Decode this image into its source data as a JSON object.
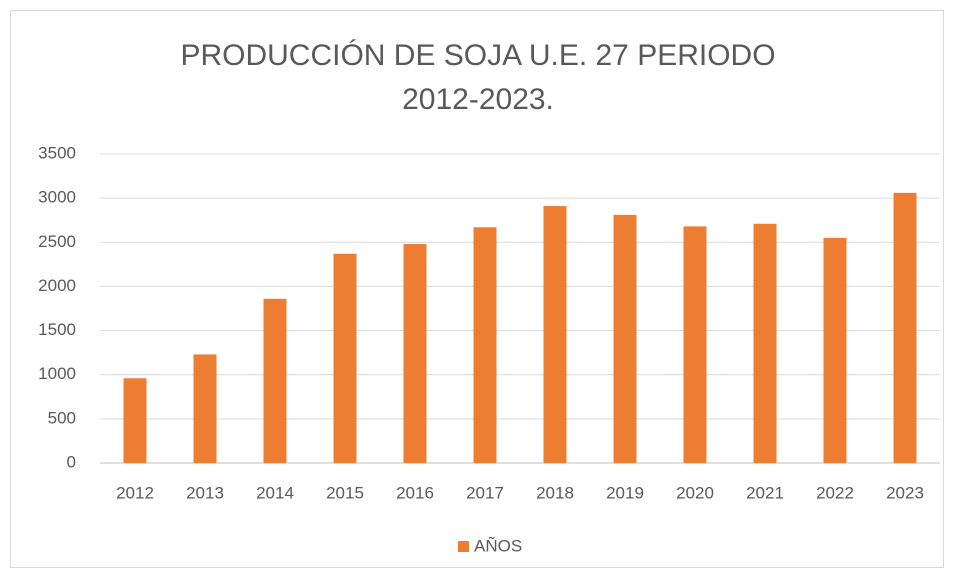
{
  "chart_data": {
    "type": "bar",
    "title": "PRODUCCIÓN DE SOJA U.E. 27 PERIODO 2012-2023.",
    "categories": [
      "2012",
      "2013",
      "2014",
      "2015",
      "2016",
      "2017",
      "2018",
      "2019",
      "2020",
      "2021",
      "2022",
      "2023"
    ],
    "series": [
      {
        "name": "AÑOS",
        "color": "#ed7d31",
        "values": [
          960,
          1230,
          1860,
          2370,
          2480,
          2670,
          2910,
          2810,
          2680,
          2710,
          2550,
          3060
        ]
      }
    ],
    "ylim": [
      0,
      3500
    ],
    "yticks": [
      0,
      500,
      1000,
      1500,
      2000,
      2500,
      3000,
      3500
    ],
    "grid": true,
    "legend": "bottom"
  }
}
